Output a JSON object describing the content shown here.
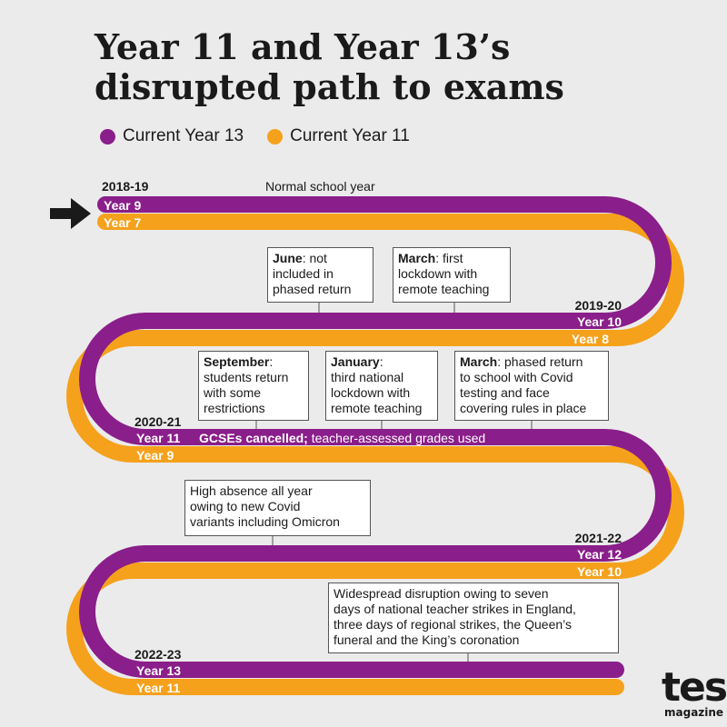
{
  "title_line1": "Year 11 and Year 13’s",
  "title_line2": "disrupted path to exams",
  "legend": [
    {
      "label": "Current Year 13",
      "color": "#8a1e8a"
    },
    {
      "label": "Current Year 11",
      "color": "#f5a11c"
    }
  ],
  "colors": {
    "purple": "#8a1e8a",
    "orange": "#f5a11c",
    "background": "#ebebeb"
  },
  "icons": [
    "arrow-right-icon",
    "tes-logo"
  ],
  "stages": [
    {
      "year": "2018-19",
      "y13": "Year 9",
      "y11": "Year 7",
      "note": "Normal school year"
    },
    {
      "year": "2019-20",
      "y13": "Year 10",
      "y11": "Year 8"
    },
    {
      "year": "2020-21",
      "y13": "Year 11",
      "y11": "Year 9",
      "note_bold": "GCSEs cancelled;",
      "note_rest": " teacher-assessed grades used"
    },
    {
      "year": "2021-22",
      "y13": "Year 12",
      "y11": "Year 10"
    },
    {
      "year": "2022-23",
      "y13": "Year 13",
      "y11": "Year 11"
    }
  ],
  "callouts": {
    "june": {
      "bold": "June",
      "rest": ": not",
      "line2": "included in",
      "line3": "phased return"
    },
    "march1": {
      "bold": "March",
      "rest": ": first",
      "line2": "lockdown with",
      "line3": "remote teaching"
    },
    "september": {
      "bold": "September",
      "rest": ":",
      "line2": "students return",
      "line3": "with some",
      "line4": "restrictions"
    },
    "january": {
      "bold": "January",
      "rest": ":",
      "line2": "third national",
      "line3": "lockdown with",
      "line4": "remote teaching"
    },
    "march2": {
      "bold": "March",
      "rest": ": phased return",
      "line2": "to school with Covid",
      "line3": "testing and face",
      "line4": "covering rules in place"
    },
    "absence": {
      "line1": "High absence all year",
      "line2": "owing to new Covid",
      "line3": "variants including Omicron"
    },
    "strikes": {
      "line1": "Widespread disruption owing to seven",
      "line2": "days of national teacher strikes in England,",
      "line3": "three days of regional strikes, the Queen’s",
      "line4": "funeral and the King’s coronation"
    }
  },
  "logo": {
    "main": "tes",
    "sub": "magazine"
  }
}
